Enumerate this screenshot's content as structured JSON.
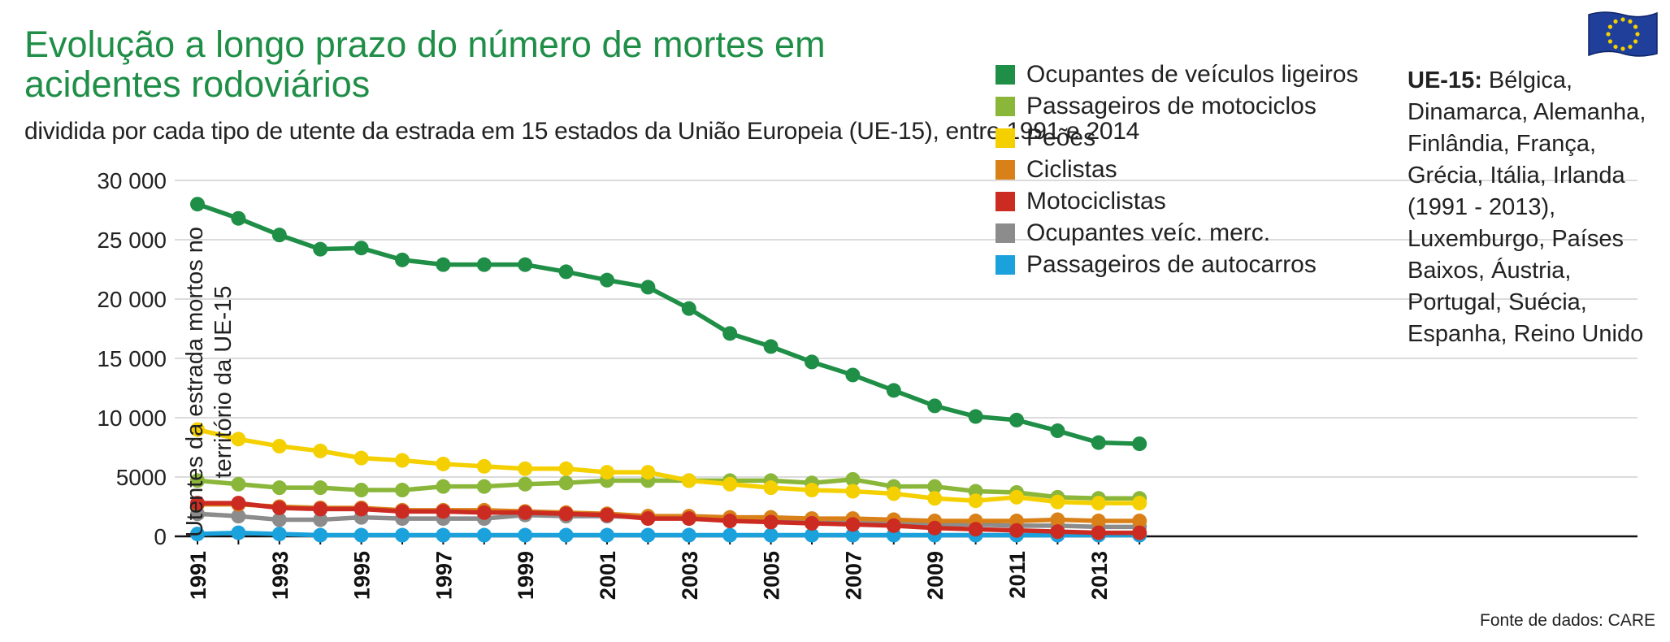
{
  "header": {
    "title": "Evolução a longo prazo do número de mortes em acidentes rodoviários",
    "subtitle": "dividida por cada tipo de utente da estrada em 15 estados da União Europeia (UE-15), entre 1991 e 2014"
  },
  "note": {
    "lead": "UE-15:",
    "text": "Bélgica, Dinamarca, Alemanha, Finlândia, França, Grécia, Itália, Irlanda (1991 - 2013), Luxemburgo, Países Baixos, Áustria, Portugal, Suécia, Espanha, Reino Unido"
  },
  "source": "Fonte de dados: CARE",
  "flag_icon": "eu-flag-icon",
  "chart_data": {
    "type": "line",
    "ylabel": "Utentes da estrada mortos no território da UE-15",
    "xlabel": "",
    "ylim": [
      0,
      30000
    ],
    "yticks": [
      0,
      5000,
      10000,
      15000,
      20000,
      25000,
      30000
    ],
    "ytick_labels": [
      "0",
      "5000",
      "10 000",
      "15 000",
      "20 000",
      "25 000",
      "30 000"
    ],
    "xtick_labels": [
      "1991",
      "1993",
      "1995",
      "1997",
      "1999",
      "2001",
      "2003",
      "2005",
      "2007",
      "2009",
      "2011",
      "2013"
    ],
    "grid": true,
    "legend_position": "top-right",
    "x": [
      1991,
      1992,
      1993,
      1994,
      1995,
      1996,
      1997,
      1998,
      1999,
      2000,
      2001,
      2002,
      2003,
      2004,
      2005,
      2006,
      2007,
      2008,
      2009,
      2010,
      2011,
      2012,
      2013,
      2014
    ],
    "series": [
      {
        "name": "Ocupantes de veículos ligeiros",
        "color": "#1f8e47",
        "values": [
          28000,
          26800,
          25400,
          24200,
          24300,
          23300,
          22900,
          22900,
          22900,
          22300,
          21600,
          21000,
          19200,
          17100,
          16000,
          14700,
          13600,
          12300,
          11000,
          10100,
          9800,
          8900,
          7900,
          7800
        ]
      },
      {
        "name": "Passageiros de motociclos",
        "color": "#8ab63a",
        "values": [
          4700,
          4400,
          4100,
          4100,
          3900,
          3900,
          4200,
          4200,
          4400,
          4500,
          4700,
          4700,
          4700,
          4700,
          4700,
          4500,
          4800,
          4200,
          4200,
          3800,
          3700,
          3300,
          3200,
          3200
        ]
      },
      {
        "name": "Peões",
        "color": "#f5d000",
        "values": [
          9000,
          8200,
          7600,
          7200,
          6600,
          6400,
          6100,
          5900,
          5700,
          5700,
          5400,
          5400,
          4700,
          4400,
          4100,
          3900,
          3800,
          3600,
          3200,
          3000,
          3300,
          2900,
          2800,
          2800
        ]
      },
      {
        "name": "Ciclistas",
        "color": "#d98118",
        "values": [
          2700,
          2700,
          2500,
          2400,
          2400,
          2200,
          2200,
          2200,
          2100,
          2000,
          1900,
          1700,
          1700,
          1600,
          1600,
          1500,
          1500,
          1400,
          1300,
          1300,
          1300,
          1400,
          1300,
          1300
        ]
      },
      {
        "name": "Motociclistas",
        "color": "#cc2b22",
        "values": [
          2800,
          2800,
          2400,
          2300,
          2300,
          2100,
          2100,
          2000,
          2000,
          1900,
          1800,
          1500,
          1500,
          1300,
          1200,
          1100,
          1000,
          900,
          700,
          600,
          500,
          400,
          300,
          300
        ]
      },
      {
        "name": "Ocupantes veíc. merc.",
        "color": "#8c8c8c",
        "values": [
          1900,
          1700,
          1400,
          1400,
          1600,
          1500,
          1500,
          1500,
          1800,
          1700,
          1700,
          1600,
          1600,
          1500,
          1400,
          1400,
          1300,
          1200,
          1000,
          1000,
          900,
          900,
          800,
          800
        ]
      },
      {
        "name": "Passageiros de autocarros",
        "color": "#1ba1dc",
        "values": [
          200,
          300,
          200,
          100,
          100,
          100,
          100,
          100,
          100,
          100,
          100,
          100,
          100,
          100,
          100,
          100,
          100,
          100,
          100,
          100,
          100,
          100,
          100,
          100
        ]
      }
    ]
  }
}
